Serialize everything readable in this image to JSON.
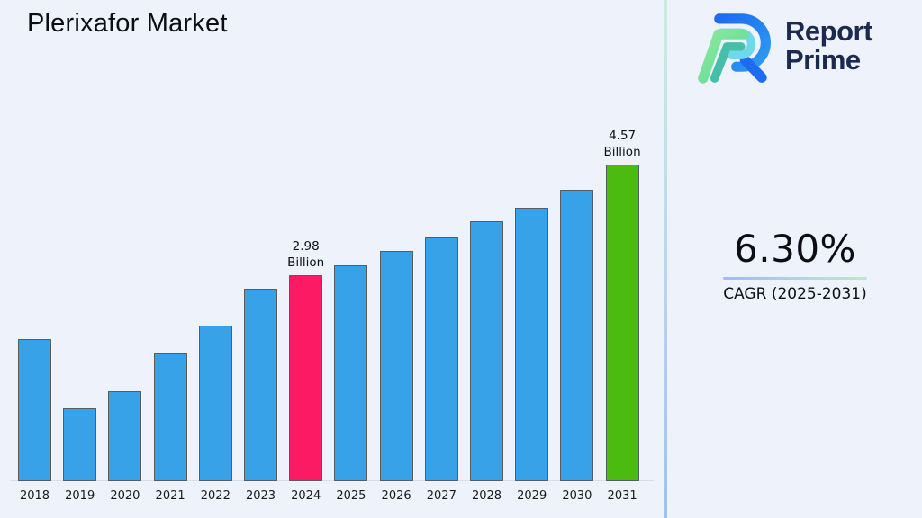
{
  "title": "Plerixafor Market",
  "logo": {
    "line1": "Report",
    "line2": "Prime"
  },
  "cagr": {
    "value": "6.30%",
    "label": "CAGR (2025-2031)"
  },
  "chart_data": {
    "type": "bar",
    "title": "Plerixafor Market",
    "categories": [
      "2018",
      "2019",
      "2020",
      "2021",
      "2022",
      "2023",
      "2024",
      "2025",
      "2026",
      "2027",
      "2028",
      "2029",
      "2030",
      "2031"
    ],
    "values": [
      2.05,
      1.05,
      1.3,
      1.85,
      2.25,
      2.78,
      2.98,
      3.12,
      3.32,
      3.52,
      3.75,
      3.95,
      4.21,
      4.57
    ],
    "unit": "Billion",
    "xlabel": "",
    "ylabel": "",
    "ylim": [
      0,
      5
    ],
    "grid": false,
    "legend": false,
    "annotations": [
      {
        "year": "2024",
        "lines": [
          "2.98",
          "Billion"
        ]
      },
      {
        "year": "2031",
        "lines": [
          "4.57",
          "Billion"
        ]
      }
    ],
    "bar_colors": {
      "default": "#38A2E9",
      "2024": "#FB1A63",
      "2031": "#4CBB10"
    }
  },
  "colors": {
    "background": "#EDF2FB",
    "separator_top": "#CDEBDC",
    "separator_bottom": "#9FC0F6",
    "underline_left": "#9CBCF4",
    "underline_right": "#B9EBC6",
    "logo_text": "#1D2A4F",
    "bar_border": "#565C64"
  }
}
